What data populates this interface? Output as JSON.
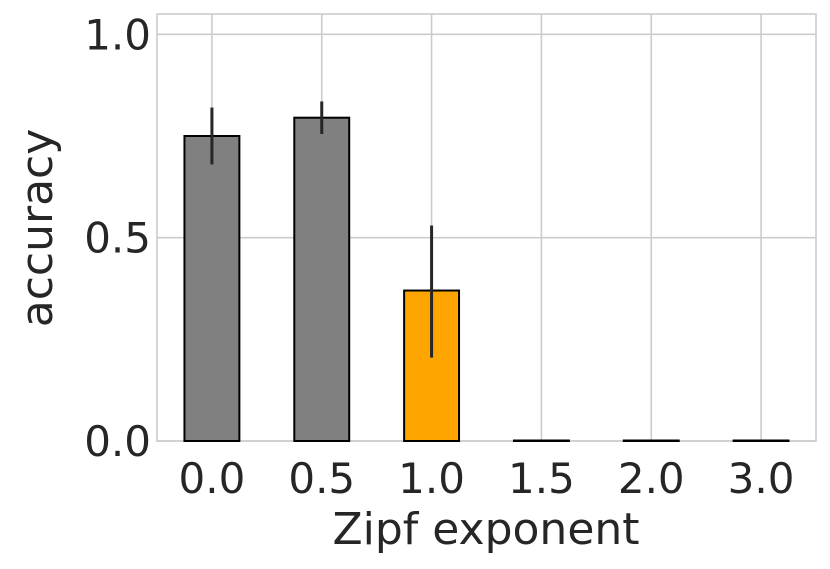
{
  "chart_data": {
    "type": "bar",
    "categories": [
      "0.0",
      "0.5",
      "1.0",
      "1.5",
      "2.0",
      "3.0"
    ],
    "values": [
      0.75,
      0.795,
      0.37,
      0.0,
      0.0,
      0.0
    ],
    "error_low": [
      0.68,
      0.755,
      0.205,
      0.0,
      0.0,
      0.0
    ],
    "error_high": [
      0.82,
      0.835,
      0.53,
      0.0,
      0.0,
      0.0
    ],
    "bar_colors": [
      "#808080",
      "#808080",
      "#ffa500",
      "#808080",
      "#808080",
      "#808080"
    ],
    "xlabel": "Zipf exponent",
    "ylabel": "accuracy",
    "yticks": [
      "0.0",
      "0.5",
      "1.0"
    ],
    "ytick_values": [
      0.0,
      0.5,
      1.0
    ],
    "ylim": [
      0,
      1.05
    ],
    "grid": true,
    "error_bar_color": "#262626",
    "grid_color": "#cccccc"
  }
}
